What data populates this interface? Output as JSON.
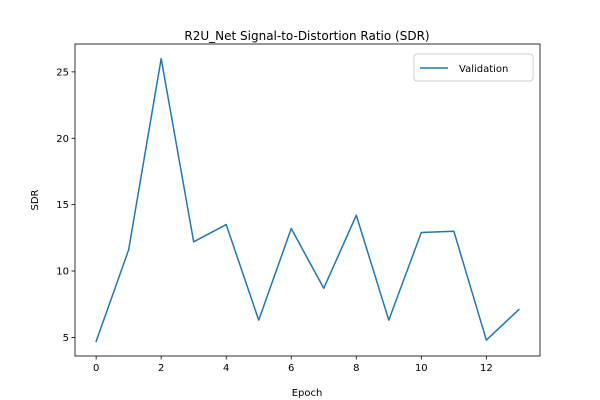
{
  "chart_data": {
    "type": "line",
    "title": "R2U_Net Signal-to-Distortion Ratio (SDR)",
    "xlabel": "Epoch",
    "ylabel": "SDR",
    "x": [
      0,
      1,
      2,
      3,
      4,
      5,
      6,
      7,
      8,
      9,
      10,
      11,
      12,
      13
    ],
    "series": [
      {
        "name": "Validation",
        "color": "#1f77b4",
        "values": [
          4.7,
          11.6,
          26.0,
          12.2,
          13.5,
          6.3,
          13.2,
          8.7,
          14.2,
          6.3,
          12.9,
          13.0,
          4.8,
          7.1
        ]
      }
    ],
    "xlim": [
      -0.65,
      13.65
    ],
    "ylim": [
      3.6,
      27.1
    ],
    "xticks": [
      0,
      2,
      4,
      6,
      8,
      10,
      12
    ],
    "yticks": [
      5,
      10,
      15,
      20,
      25
    ],
    "grid": false,
    "legend_position": "upper right"
  }
}
